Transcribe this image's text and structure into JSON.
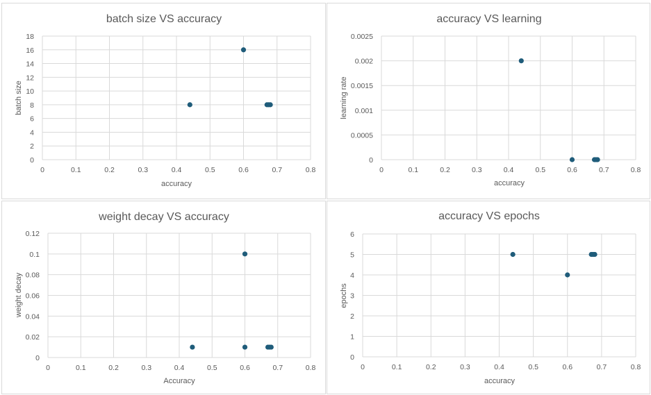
{
  "chart_data": [
    {
      "type": "scatter",
      "title": "batch size VS accuracy",
      "xlabel": "accuracy",
      "ylabel": "batch size",
      "xlim": [
        0,
        0.8
      ],
      "ylim": [
        0,
        18
      ],
      "xticks": [
        "0",
        "0.1",
        "0.2",
        "0.3",
        "0.4",
        "0.5",
        "0.6",
        "0.7",
        "0.8"
      ],
      "yticks": [
        "0",
        "2",
        "4",
        "6",
        "8",
        "10",
        "12",
        "14",
        "16",
        "18"
      ],
      "grid": true,
      "marker_color": "#1f5c7a",
      "points": [
        {
          "x": 0.44,
          "y": 8
        },
        {
          "x": 0.6,
          "y": 16
        },
        {
          "x": 0.67,
          "y": 8
        },
        {
          "x": 0.675,
          "y": 8
        },
        {
          "x": 0.68,
          "y": 8
        }
      ]
    },
    {
      "type": "scatter",
      "title": "accuracy VS learning",
      "xlabel": "accuracy",
      "ylabel": "learning rate",
      "xlim": [
        0,
        0.8
      ],
      "ylim": [
        0,
        0.0025
      ],
      "xticks": [
        "0",
        "0.1",
        "0.2",
        "0.3",
        "0.4",
        "0.5",
        "0.6",
        "0.7",
        "0.8"
      ],
      "yticks": [
        "0",
        "0.0005",
        "0.001",
        "0.0015",
        "0.002",
        "0.0025"
      ],
      "grid": true,
      "marker_color": "#1f5c7a",
      "points": [
        {
          "x": 0.44,
          "y": 0.002
        },
        {
          "x": 0.6,
          "y": 0
        },
        {
          "x": 0.67,
          "y": 0
        },
        {
          "x": 0.675,
          "y": 0
        },
        {
          "x": 0.68,
          "y": 0
        }
      ]
    },
    {
      "type": "scatter",
      "title": "weight decay VS accuracy",
      "xlabel": "Accuracy",
      "ylabel": "weight decay",
      "xlim": [
        0,
        0.8
      ],
      "ylim": [
        0,
        0.12
      ],
      "xticks": [
        "0",
        "0.1",
        "0.2",
        "0.3",
        "0.4",
        "0.5",
        "0.6",
        "0.7",
        "0.8"
      ],
      "yticks": [
        "0",
        "0.02",
        "0.04",
        "0.06",
        "0.08",
        "0.1",
        "0.12"
      ],
      "grid": true,
      "marker_color": "#1f5c7a",
      "points": [
        {
          "x": 0.44,
          "y": 0.01
        },
        {
          "x": 0.6,
          "y": 0.1
        },
        {
          "x": 0.6,
          "y": 0.01
        },
        {
          "x": 0.67,
          "y": 0.01
        },
        {
          "x": 0.675,
          "y": 0.01
        },
        {
          "x": 0.68,
          "y": 0.01
        }
      ]
    },
    {
      "type": "scatter",
      "title": "accuracy VS epochs",
      "xlabel": "accuracy",
      "ylabel": "epochs",
      "xlim": [
        0,
        0.8
      ],
      "ylim": [
        0,
        6
      ],
      "xticks": [
        "0",
        "0.1",
        "0.2",
        "0.3",
        "0.4",
        "0.5",
        "0.6",
        "0.7",
        "0.8"
      ],
      "yticks": [
        "0",
        "1",
        "2",
        "3",
        "4",
        "5",
        "6"
      ],
      "grid": true,
      "marker_color": "#1f5c7a",
      "points": [
        {
          "x": 0.44,
          "y": 5
        },
        {
          "x": 0.6,
          "y": 4
        },
        {
          "x": 0.67,
          "y": 5
        },
        {
          "x": 0.675,
          "y": 5
        },
        {
          "x": 0.68,
          "y": 5
        }
      ]
    }
  ]
}
